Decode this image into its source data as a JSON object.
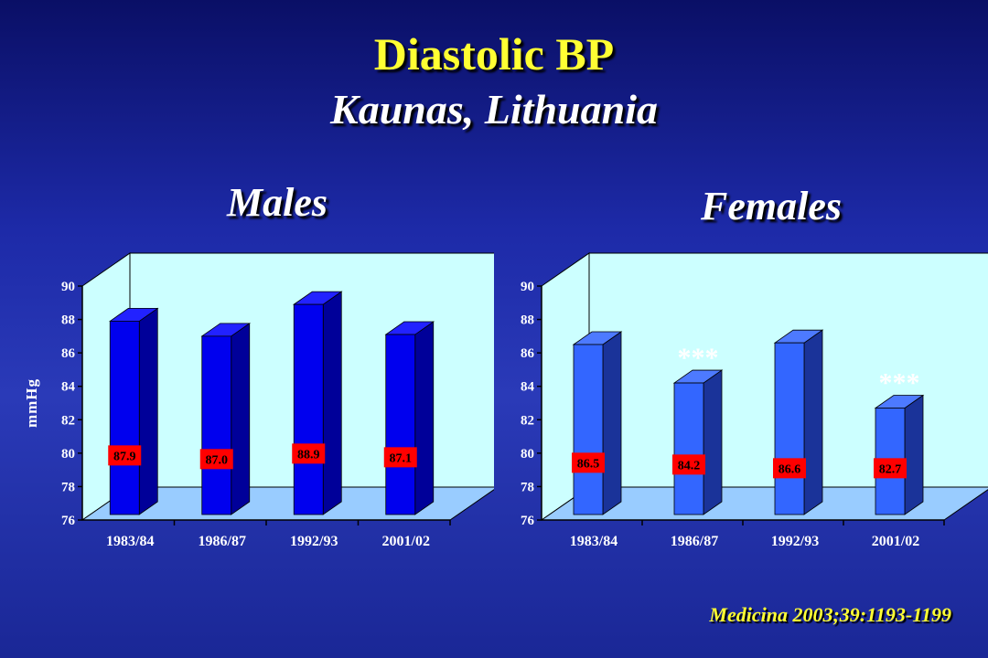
{
  "title": "Diastolic BP",
  "subtitle": "Kaunas, Lithuania",
  "citation": "Medicina 2003;39:1193-1199",
  "colors": {
    "title": "#ffff33",
    "wall": "#ccffff",
    "floor": "#99ccff",
    "label_box": "#ff0000"
  },
  "chart_data": [
    {
      "type": "bar",
      "title": "Males",
      "ylabel": "mmHg",
      "xlabel": "",
      "categories": [
        "1983/84",
        "1986/87",
        "1992/93",
        "2001/02"
      ],
      "series": [
        {
          "values": [
            87.9,
            87.0,
            88.9,
            87.1
          ]
        }
      ],
      "value_labels": [
        "87.9",
        "87.0",
        "88.9",
        "87.1"
      ],
      "annotations": [
        "",
        "",
        "",
        ""
      ],
      "ylim": [
        76,
        90
      ],
      "yticks": [
        "76",
        "78",
        "80",
        "82",
        "84",
        "86",
        "88",
        "90"
      ],
      "bar_color": "#0000ee",
      "bar_side_color": "#000099",
      "bar_top_color": "#2222ff",
      "grid": false,
      "legend": "none"
    },
    {
      "type": "bar",
      "title": "Females",
      "ylabel": "",
      "xlabel": "",
      "categories": [
        "1983/84",
        "1986/87",
        "1992/93",
        "2001/02"
      ],
      "series": [
        {
          "values": [
            86.5,
            84.2,
            86.6,
            82.7
          ]
        }
      ],
      "value_labels": [
        "86.5",
        "84.2",
        "86.6",
        "82.7"
      ],
      "annotations": [
        "",
        "***",
        "",
        "***"
      ],
      "ylim": [
        76,
        90
      ],
      "yticks": [
        "76",
        "78",
        "80",
        "82",
        "84",
        "86",
        "88",
        "90"
      ],
      "bar_color": "#3366ff",
      "bar_side_color": "#1a3399",
      "bar_top_color": "#4d7aff",
      "grid": false,
      "legend": "none"
    }
  ]
}
